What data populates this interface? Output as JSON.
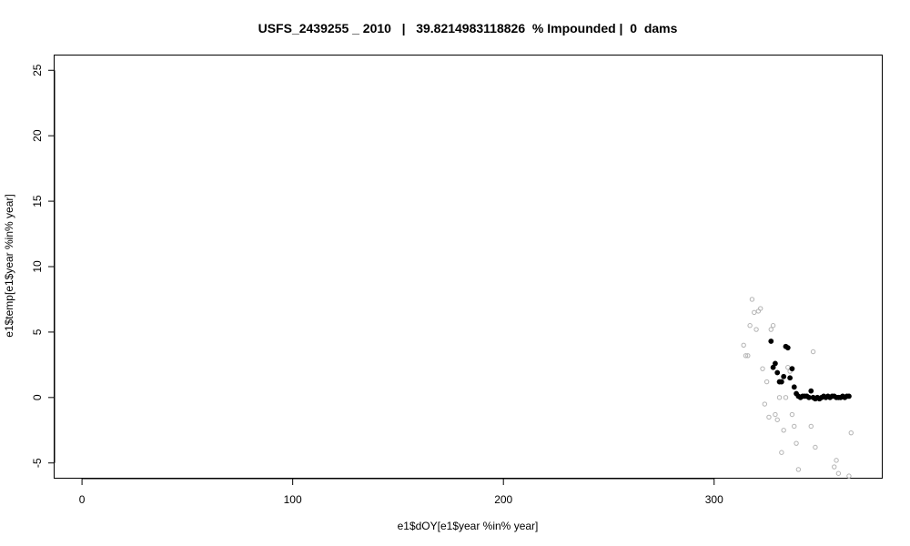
{
  "chart_data": {
    "type": "scatter",
    "title": "USFS_2439255 _ 2010   |   39.8214983118826  % Impounded |  0  dams",
    "xlabel": "e1$dOY[e1$year %in% year]",
    "ylabel": "e1$temp[e1$year %in% year]",
    "xlim": [
      -13,
      380
    ],
    "ylim": [
      -6.2,
      26.2
    ],
    "x_ticks": [
      0,
      100,
      200,
      300
    ],
    "y_ticks": [
      -5,
      0,
      5,
      10,
      15,
      20,
      25
    ],
    "grid": false,
    "legend": "none",
    "colors": {
      "filled": "#000000",
      "open": "#b3b3b3"
    },
    "series": [
      {
        "style": "open",
        "points": [
          {
            "x": 314,
            "y": 4.0
          },
          {
            "x": 315,
            "y": 3.2
          },
          {
            "x": 316,
            "y": 3.2
          },
          {
            "x": 317,
            "y": 5.5
          },
          {
            "x": 318,
            "y": 7.5
          },
          {
            "x": 319,
            "y": 6.5
          },
          {
            "x": 320,
            "y": 5.2
          },
          {
            "x": 321,
            "y": 6.6
          },
          {
            "x": 322,
            "y": 6.8
          },
          {
            "x": 323,
            "y": 2.2
          },
          {
            "x": 324,
            "y": -0.5
          },
          {
            "x": 325,
            "y": 1.2
          },
          {
            "x": 326,
            "y": -1.5
          },
          {
            "x": 327,
            "y": 5.2
          },
          {
            "x": 328,
            "y": 5.5
          },
          {
            "x": 329,
            "y": -1.3
          },
          {
            "x": 330,
            "y": -1.7
          },
          {
            "x": 331,
            "y": 0.0
          },
          {
            "x": 332,
            "y": -4.2
          },
          {
            "x": 333,
            "y": -2.5
          },
          {
            "x": 334,
            "y": 0.0
          },
          {
            "x": 335,
            "y": 2.3
          },
          {
            "x": 336,
            "y": 2.0
          },
          {
            "x": 337,
            "y": -1.3
          },
          {
            "x": 338,
            "y": -2.2
          },
          {
            "x": 339,
            "y": -3.5
          },
          {
            "x": 340,
            "y": -5.5
          },
          {
            "x": 346,
            "y": -2.2
          },
          {
            "x": 347,
            "y": 3.5
          },
          {
            "x": 348,
            "y": -3.8
          },
          {
            "x": 357,
            "y": -5.3
          },
          {
            "x": 358,
            "y": -4.8
          },
          {
            "x": 359,
            "y": -5.8
          },
          {
            "x": 364,
            "y": -6.0
          },
          {
            "x": 365,
            "y": -2.7
          }
        ]
      },
      {
        "style": "filled",
        "points": [
          {
            "x": 327,
            "y": 4.3
          },
          {
            "x": 328,
            "y": 2.3
          },
          {
            "x": 329,
            "y": 2.6
          },
          {
            "x": 330,
            "y": 1.9
          },
          {
            "x": 331,
            "y": 1.2
          },
          {
            "x": 332,
            "y": 1.2
          },
          {
            "x": 333,
            "y": 1.6
          },
          {
            "x": 334,
            "y": 3.9
          },
          {
            "x": 335,
            "y": 3.8
          },
          {
            "x": 336,
            "y": 1.5
          },
          {
            "x": 337,
            "y": 2.2
          },
          {
            "x": 338,
            "y": 0.8
          },
          {
            "x": 339,
            "y": 0.3
          },
          {
            "x": 340,
            "y": 0.1
          },
          {
            "x": 341,
            "y": 0.0
          },
          {
            "x": 342,
            "y": 0.1
          },
          {
            "x": 343,
            "y": 0.1
          },
          {
            "x": 344,
            "y": 0.1
          },
          {
            "x": 345,
            "y": 0.0
          },
          {
            "x": 346,
            "y": 0.5
          },
          {
            "x": 347,
            "y": 0.0
          },
          {
            "x": 348,
            "y": -0.1
          },
          {
            "x": 349,
            "y": 0.0
          },
          {
            "x": 350,
            "y": -0.1
          },
          {
            "x": 351,
            "y": 0.0
          },
          {
            "x": 352,
            "y": 0.1
          },
          {
            "x": 353,
            "y": 0.0
          },
          {
            "x": 354,
            "y": 0.1
          },
          {
            "x": 355,
            "y": 0.0
          },
          {
            "x": 356,
            "y": 0.1
          },
          {
            "x": 357,
            "y": 0.1
          },
          {
            "x": 358,
            "y": 0.0
          },
          {
            "x": 359,
            "y": 0.0
          },
          {
            "x": 360,
            "y": 0.0
          },
          {
            "x": 361,
            "y": 0.1
          },
          {
            "x": 362,
            "y": 0.0
          },
          {
            "x": 363,
            "y": 0.1
          },
          {
            "x": 364,
            "y": 0.1
          }
        ]
      }
    ]
  }
}
